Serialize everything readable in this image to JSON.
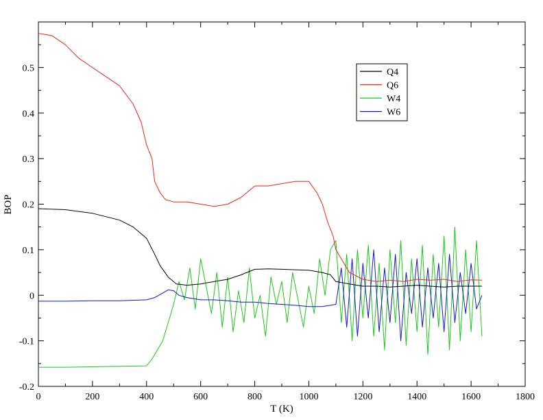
{
  "chart_data": {
    "type": "line",
    "title": "",
    "xlabel": "T (K)",
    "ylabel": "BOP",
    "xlim": [
      0,
      1800
    ],
    "ylim": [
      -0.2,
      0.6
    ],
    "xticks": [
      0,
      200,
      400,
      600,
      800,
      1000,
      1200,
      1400,
      1600,
      1800
    ],
    "yticks": [
      -0.2,
      -0.1,
      0,
      0.1,
      0.2,
      0.3,
      0.4,
      0.5
    ],
    "ytick_labels": [
      "-0.2",
      "-0.1",
      "0",
      "0.1",
      "0.2",
      "0.3",
      "0.4",
      "0.5"
    ],
    "grid": false,
    "legend_position": "top-right",
    "series": [
      {
        "name": "Q4",
        "color": "#000000",
        "x": [
          0,
          100,
          200,
          300,
          350,
          400,
          430,
          450,
          480,
          510,
          550,
          600,
          650,
          700,
          750,
          800,
          850,
          900,
          950,
          1000,
          1050,
          1080,
          1100,
          1150,
          1200,
          1250,
          1300,
          1350,
          1400,
          1450,
          1500,
          1550,
          1600,
          1640
        ],
        "y": [
          0.19,
          0.188,
          0.18,
          0.165,
          0.15,
          0.125,
          0.09,
          0.065,
          0.04,
          0.025,
          0.022,
          0.025,
          0.03,
          0.035,
          0.045,
          0.057,
          0.058,
          0.057,
          0.056,
          0.055,
          0.05,
          0.045,
          0.03,
          0.025,
          0.02,
          0.02,
          0.018,
          0.02,
          0.022,
          0.02,
          0.018,
          0.02,
          0.02,
          0.02
        ]
      },
      {
        "name": "Q6",
        "color": "#e8261a",
        "x": [
          0,
          50,
          100,
          150,
          200,
          250,
          300,
          350,
          380,
          400,
          420,
          430,
          450,
          470,
          500,
          550,
          600,
          650,
          700,
          750,
          800,
          850,
          900,
          950,
          1000,
          1030,
          1050,
          1070,
          1090,
          1100,
          1150,
          1200,
          1250,
          1300,
          1350,
          1400,
          1450,
          1500,
          1550,
          1600,
          1640
        ],
        "y": [
          0.575,
          0.57,
          0.55,
          0.52,
          0.5,
          0.48,
          0.46,
          0.42,
          0.38,
          0.33,
          0.3,
          0.25,
          0.225,
          0.21,
          0.205,
          0.205,
          0.2,
          0.195,
          0.2,
          0.215,
          0.24,
          0.24,
          0.245,
          0.25,
          0.25,
          0.225,
          0.2,
          0.16,
          0.13,
          0.1,
          0.05,
          0.035,
          0.03,
          0.033,
          0.03,
          0.035,
          0.033,
          0.035,
          0.03,
          0.034,
          0.033
        ]
      },
      {
        "name": "W4",
        "color": "#19c819",
        "x": [
          0,
          100,
          200,
          300,
          400,
          420,
          440,
          460,
          480,
          500,
          520,
          540,
          560,
          580,
          600,
          620,
          640,
          660,
          680,
          700,
          720,
          740,
          760,
          780,
          800,
          820,
          840,
          860,
          880,
          900,
          920,
          940,
          960,
          980,
          1000,
          1020,
          1040,
          1060,
          1080,
          1100,
          1120,
          1140,
          1160,
          1180,
          1200,
          1220,
          1240,
          1260,
          1280,
          1300,
          1320,
          1340,
          1360,
          1380,
          1400,
          1420,
          1440,
          1460,
          1480,
          1500,
          1520,
          1540,
          1560,
          1580,
          1600,
          1620,
          1640
        ],
        "y": [
          -0.158,
          -0.158,
          -0.157,
          -0.156,
          -0.155,
          -0.14,
          -0.12,
          -0.1,
          -0.06,
          -0.02,
          0.03,
          -0.01,
          0.06,
          -0.03,
          0.08,
          0.02,
          -0.04,
          0.05,
          -0.07,
          0.04,
          -0.08,
          0.01,
          -0.06,
          0.06,
          -0.05,
          0.0,
          -0.09,
          0.04,
          -0.02,
          0.03,
          -0.06,
          0.05,
          -0.01,
          -0.07,
          0.02,
          -0.04,
          0.08,
          0.0,
          0.1,
          0.12,
          -0.06,
          0.09,
          -0.1,
          0.1,
          -0.05,
          0.11,
          -0.09,
          0.07,
          -0.12,
          0.1,
          -0.06,
          0.12,
          -0.11,
          0.08,
          -0.08,
          0.11,
          -0.13,
          0.09,
          -0.07,
          0.13,
          -0.12,
          0.15,
          -0.1,
          0.1,
          -0.08,
          0.12,
          -0.09
        ]
      },
      {
        "name": "W6",
        "color": "#1414c8",
        "x": [
          0,
          100,
          200,
          300,
          400,
          430,
          460,
          480,
          500,
          520,
          550,
          600,
          650,
          700,
          750,
          800,
          850,
          900,
          950,
          1000,
          1050,
          1100,
          1120,
          1140,
          1160,
          1180,
          1200,
          1220,
          1240,
          1260,
          1280,
          1300,
          1320,
          1340,
          1360,
          1380,
          1400,
          1420,
          1440,
          1460,
          1480,
          1500,
          1520,
          1540,
          1560,
          1580,
          1600,
          1620,
          1640
        ],
        "y": [
          -0.013,
          -0.013,
          -0.012,
          -0.012,
          -0.01,
          -0.005,
          0.005,
          0.012,
          0.01,
          0.0,
          -0.005,
          -0.01,
          -0.01,
          -0.012,
          -0.015,
          -0.015,
          -0.018,
          -0.02,
          -0.022,
          -0.025,
          -0.025,
          -0.02,
          0.06,
          -0.07,
          0.08,
          -0.09,
          0.07,
          -0.05,
          0.1,
          -0.08,
          0.06,
          -0.06,
          0.09,
          -0.1,
          0.05,
          -0.04,
          0.08,
          -0.07,
          0.06,
          -0.05,
          0.07,
          -0.08,
          0.09,
          -0.06,
          0.05,
          -0.04,
          0.07,
          -0.03,
          0.0
        ]
      }
    ]
  }
}
